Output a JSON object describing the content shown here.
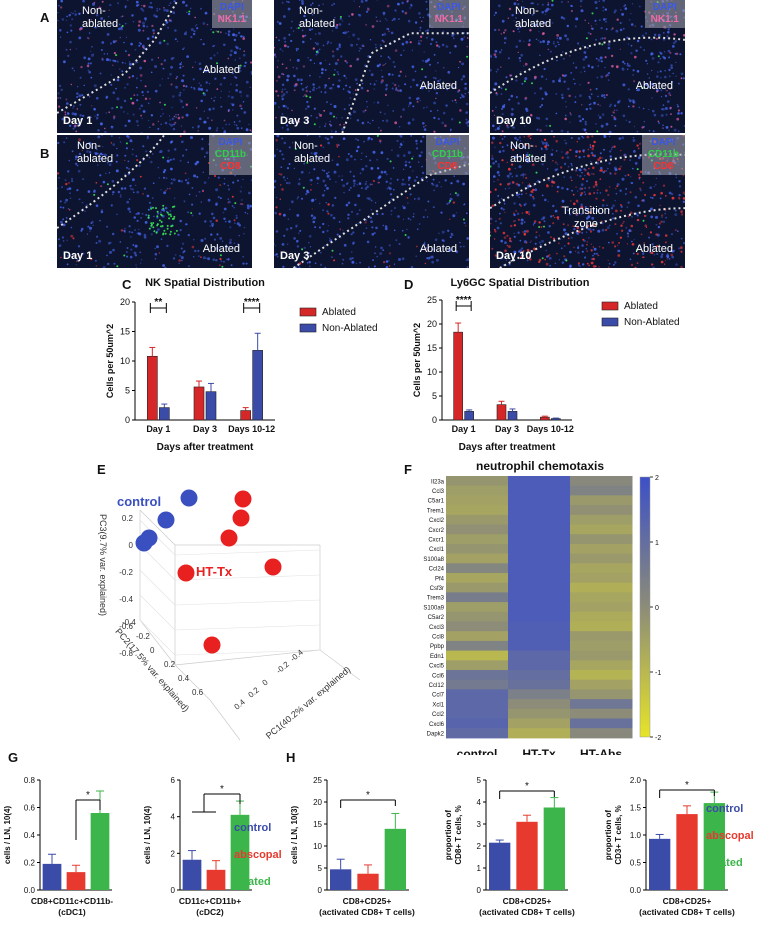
{
  "panels": {
    "A": "A",
    "B": "B",
    "C": "C",
    "D": "D",
    "E": "E",
    "F": "F",
    "G": "G",
    "H": "H"
  },
  "micrographs": {
    "row_a": [
      {
        "non_ablated": "Non-\nablated",
        "ablated": "Ablated",
        "day": "Day 1",
        "dapi": "DAPI",
        "marker": "NK1.1"
      },
      {
        "non_ablated": "Non-\nablated",
        "ablated": "Ablated",
        "day": "Day 3",
        "dapi": "DAPI",
        "marker": "NK1.1"
      },
      {
        "non_ablated": "Non-\nablated",
        "ablated": "Ablated",
        "day": "Day 10",
        "dapi": "DAPI",
        "marker": "NK1.1"
      }
    ],
    "row_b": [
      {
        "non_ablated": "Non-\nablated",
        "ablated": "Ablated",
        "day": "Day 1",
        "dapi": "DAPI",
        "marker1": "CD11b",
        "marker2": "CD8"
      },
      {
        "non_ablated": "Non-\nablated",
        "ablated": "Ablated",
        "day": "Day 3",
        "dapi": "DAPI",
        "marker1": "CD11b",
        "marker2": "CD8"
      },
      {
        "non_ablated": "Non-\nablated",
        "ablated": "Ablated",
        "day": "Day 10",
        "dapi": "DAPI",
        "marker1": "CD11b",
        "marker2": "CD8",
        "transition": "Transition\nzone"
      }
    ]
  },
  "colors": {
    "ablated": "#d62728",
    "non_ablated": "#3b4ba8",
    "control": "#3b4ba8",
    "abscopal": "#e8392e",
    "treated": "#3cb54a",
    "pca_red": "#e82020",
    "pca_blue": "#3a50c0"
  },
  "chart_data": [
    {
      "id": "C",
      "type": "bar",
      "title": "NK Spatial Distribution",
      "xlabel": "Days after treatment",
      "ylabel": "Cells per 50um^2",
      "categories": [
        "Day 1",
        "Day 3",
        "Days 10-12"
      ],
      "series": [
        {
          "name": "Ablated",
          "values": [
            10.8,
            5.6,
            1.6
          ],
          "errors": [
            1.5,
            1.0,
            0.5
          ]
        },
        {
          "name": "Non-Ablated",
          "values": [
            2.1,
            4.8,
            11.8
          ],
          "errors": [
            0.6,
            1.4,
            2.9
          ]
        }
      ],
      "ylim": [
        0,
        20
      ],
      "yticks": [
        0,
        5,
        10,
        15,
        20
      ],
      "significance": [
        {
          "category": 0,
          "label": "**"
        },
        {
          "category": 2,
          "label": "****"
        }
      ],
      "legend": "right"
    },
    {
      "id": "D",
      "type": "bar",
      "title": "Ly6GC Spatial Distribution",
      "xlabel": "Days after treatment",
      "ylabel": "Cells per 50um^2",
      "categories": [
        "Day 1",
        "Day 3",
        "Days 10-12"
      ],
      "series": [
        {
          "name": "Ablated",
          "values": [
            18.3,
            3.2,
            0.6
          ],
          "errors": [
            1.9,
            0.7,
            0.2
          ]
        },
        {
          "name": "Non-Ablated",
          "values": [
            1.8,
            1.8,
            0.3
          ],
          "errors": [
            0.3,
            0.5,
            0.1
          ]
        }
      ],
      "ylim": [
        0,
        25
      ],
      "yticks": [
        0,
        5,
        10,
        15,
        20,
        25
      ],
      "significance": [
        {
          "category": 0,
          "label": "****"
        }
      ],
      "legend": "right"
    },
    {
      "id": "E",
      "type": "scatter",
      "axis_pc1": "PC1(40.2% var. explained)",
      "axis_pc2": "PC2(17.5% var. explained)",
      "axis_pc3": "PC3(9.7% var. explained)",
      "pc3_ticks": [
        "0.2",
        "0",
        "-0.2",
        "-0.4",
        "-0.6",
        "-0.8"
      ],
      "pc2_ticks": [
        "-0.4",
        "-0.2",
        "0",
        "0.2",
        "0.4",
        "0.6"
      ],
      "pc1_ticks": [
        "-0.4",
        "-0.2",
        "0",
        "0.2",
        "0.4"
      ],
      "groups": [
        {
          "name": "control",
          "points": [
            [
              189,
              498
            ],
            [
              166,
              520
            ],
            [
              149,
              538
            ],
            [
              144,
              543
            ]
          ]
        },
        {
          "name": "HT-Tx",
          "points": [
            [
              243,
              499
            ],
            [
              241,
              518
            ],
            [
              229,
              538
            ],
            [
              186,
              573
            ],
            [
              273,
              567
            ],
            [
              212,
              645
            ]
          ]
        }
      ]
    },
    {
      "id": "F",
      "type": "heatmap",
      "title": "neutrophil chemotaxis",
      "columns": [
        "control",
        "HT-Tx",
        "HT-Abs"
      ],
      "rows": [
        "Il23a",
        "Ccl3",
        "C5ar1",
        "Trem1",
        "Cxcl2",
        "Cxcr2",
        "Cxcr1",
        "Cxcl1",
        "S100a8",
        "Ccl24",
        "Pf4",
        "Csf3r",
        "Trem3",
        "S100a9",
        "C5ar2",
        "Cxcl3",
        "Ccl8",
        "Ppbp",
        "Edn1",
        "Cxcl5",
        "Ccl6",
        "Ccl12",
        "Ccl7",
        "Xcl1",
        "Ccl2",
        "Cxcl6",
        "Dapk2"
      ],
      "values": [
        [
          -0.2,
          1.6,
          0.1
        ],
        [
          -0.4,
          1.6,
          0.3
        ],
        [
          -0.5,
          1.6,
          -0.3
        ],
        [
          -0.6,
          1.6,
          -0.1
        ],
        [
          -0.3,
          1.6,
          -0.4
        ],
        [
          -0.1,
          1.6,
          -0.6
        ],
        [
          -0.4,
          1.6,
          -0.2
        ],
        [
          -0.2,
          1.6,
          -0.5
        ],
        [
          -0.5,
          1.6,
          -0.3
        ],
        [
          0.2,
          1.6,
          -0.6
        ],
        [
          -0.6,
          1.6,
          -0.5
        ],
        [
          -0.3,
          1.6,
          -0.8
        ],
        [
          0.5,
          1.6,
          -0.6
        ],
        [
          -0.4,
          1.6,
          -0.5
        ],
        [
          -0.2,
          1.6,
          -0.7
        ],
        [
          0.0,
          1.5,
          -0.8
        ],
        [
          -0.5,
          1.5,
          -0.3
        ],
        [
          0.3,
          1.5,
          -0.4
        ],
        [
          -1.0,
          1.2,
          -0.3
        ],
        [
          -0.4,
          1.2,
          -0.6
        ],
        [
          0.8,
          1.0,
          -0.9
        ],
        [
          0.6,
          0.9,
          -0.5
        ],
        [
          1.2,
          0.4,
          -0.2
        ],
        [
          1.2,
          0.0,
          0.7
        ],
        [
          1.2,
          -0.2,
          0.0
        ],
        [
          1.3,
          -0.5,
          0.9
        ],
        [
          1.1,
          -0.8,
          0.1
        ]
      ],
      "colorbar": {
        "min": -2,
        "max": 2,
        "ticks": [
          "2",
          "1",
          "0",
          "-1",
          "-2"
        ]
      }
    },
    {
      "id": "G1",
      "type": "bar",
      "ylabel": "cells / LN, 10(4)",
      "xlabel": "CD8+CD11c+CD11b-\n(cDC1)",
      "categories": [
        "control",
        "abscopal",
        "treated"
      ],
      "values": [
        0.19,
        0.13,
        0.56
      ],
      "errors": [
        0.07,
        0.05,
        0.16
      ],
      "ylim": [
        0,
        0.8
      ],
      "yticks": [
        "0.0",
        "0.2",
        "0.4",
        "0.6",
        "0.8"
      ],
      "significance": [
        {
          "from": 1,
          "to": 2,
          "label": "*"
        }
      ]
    },
    {
      "id": "G2",
      "type": "bar",
      "ylabel": "cells / LN, 10(4)",
      "xlabel": "CD11c+CD11b+\n(cDC2)",
      "categories": [
        "control",
        "abscopal",
        "treated"
      ],
      "values": [
        1.65,
        1.1,
        4.1
      ],
      "errors": [
        0.5,
        0.5,
        0.75
      ],
      "ylim": [
        0,
        6
      ],
      "yticks": [
        "0",
        "2",
        "4",
        "6"
      ],
      "significance": [
        {
          "from": 0.5,
          "to": 2,
          "label": "*"
        }
      ]
    },
    {
      "id": "H1",
      "type": "bar",
      "ylabel": "cells / LN, 10(3)",
      "xlabel": "CD8+CD25+\n(activated CD8+ T cells)",
      "categories": [
        "control",
        "abscopal",
        "treated"
      ],
      "values": [
        4.7,
        3.7,
        13.9
      ],
      "errors": [
        2.3,
        2.0,
        3.5
      ],
      "ylim": [
        0,
        25
      ],
      "yticks": [
        "0",
        "5",
        "10",
        "15",
        "20",
        "25"
      ],
      "significance": [
        {
          "from": 0,
          "to": 2,
          "label": "*"
        }
      ]
    },
    {
      "id": "H2",
      "type": "bar",
      "ylabel": "proportion of\nCD8+ T cells, %",
      "xlabel": "CD8+CD25+\n(activated CD8+ T cells)",
      "categories": [
        "control",
        "abscopal",
        "treated"
      ],
      "values": [
        2.15,
        3.1,
        3.75
      ],
      "errors": [
        0.12,
        0.3,
        0.45
      ],
      "ylim": [
        0,
        5
      ],
      "yticks": [
        "0",
        "1",
        "2",
        "3",
        "4",
        "5"
      ],
      "significance": [
        {
          "from": 0,
          "to": 2,
          "label": "*"
        }
      ]
    },
    {
      "id": "H3",
      "type": "bar",
      "ylabel": "proportion of\nCD3+ T cells, %",
      "xlabel": "CD8+CD25+\n(activated CD8+ T cells)",
      "categories": [
        "control",
        "abscopal",
        "treated"
      ],
      "values": [
        0.93,
        1.38,
        1.58
      ],
      "errors": [
        0.08,
        0.15,
        0.2
      ],
      "ylim": [
        0,
        2.0
      ],
      "yticks": [
        "0.0",
        "0.5",
        "1.0",
        "1.5",
        "2.0"
      ],
      "significance": [
        {
          "from": 0,
          "to": 2,
          "label": "*"
        }
      ]
    }
  ],
  "pca_labels": {
    "control": "control",
    "httx": "HT-Tx"
  },
  "group_legend": {
    "control": "control",
    "abscopal": "abscopal",
    "treated": "treated"
  }
}
